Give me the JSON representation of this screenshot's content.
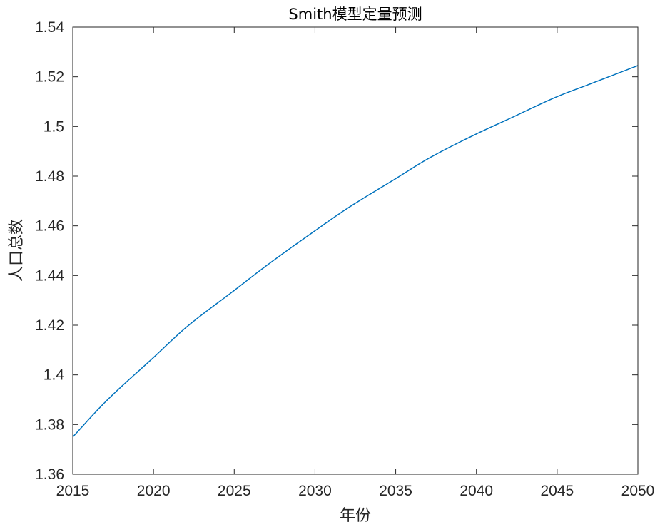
{
  "chart_data": {
    "type": "line",
    "title": "Smith模型定量预测",
    "xlabel": "年份",
    "ylabel": "人口总数",
    "xlim": [
      2015,
      2050
    ],
    "ylim": [
      1.36,
      1.54
    ],
    "xticks": [
      2015,
      2020,
      2025,
      2030,
      2035,
      2040,
      2045,
      2050
    ],
    "yticks": [
      1.36,
      1.38,
      1.4,
      1.42,
      1.44,
      1.46,
      1.48,
      1.5,
      1.52,
      1.54
    ],
    "xtick_labels": [
      "2015",
      "2020",
      "2025",
      "2030",
      "2035",
      "2040",
      "2045",
      "2050"
    ],
    "ytick_labels": [
      "1.36",
      "1.38",
      "1.4",
      "1.42",
      "1.44",
      "1.46",
      "1.48",
      "1.5",
      "1.52",
      "1.54"
    ],
    "grid": false,
    "box": true,
    "series": [
      {
        "color": "#0072BD",
        "x": [
          2015,
          2017,
          2020,
          2022,
          2025,
          2027,
          2030,
          2032,
          2035,
          2037,
          2040,
          2042,
          2045,
          2047,
          2050
        ],
        "y": [
          1.375,
          1.389,
          1.407,
          1.419,
          1.434,
          1.444,
          1.458,
          1.467,
          1.479,
          1.487,
          1.497,
          1.503,
          1.512,
          1.517,
          1.5245
        ]
      }
    ]
  }
}
